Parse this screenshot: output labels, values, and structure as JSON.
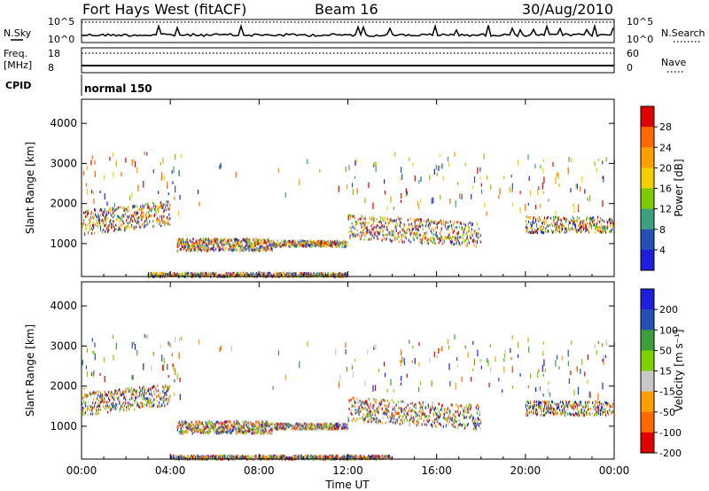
{
  "header": {
    "site": "Fort Hays West (fitACF)",
    "beam": "Beam 16",
    "date": "30/Aug/2010"
  },
  "top_panels": {
    "nsky_label": "N.Sky",
    "nsearch_label": "N.Search",
    "count_scale": [
      "10^5",
      "10^0"
    ],
    "freq_label": "Freq.",
    "freq_unit": "[MHz]",
    "freq_ticks": [
      "18",
      "8"
    ],
    "nave_label": "Nave",
    "nave_ticks": [
      "60",
      "0"
    ],
    "cpid_label": "CPID",
    "cpid_value": "normal 150"
  },
  "chart_data": [
    {
      "type": "heatmap",
      "name": "power",
      "ylabel": "Slant Range [km]",
      "yticks": [
        1000,
        2000,
        3000,
        4000
      ],
      "ylim": [
        180,
        4600
      ],
      "xlim_hours": [
        0,
        24
      ],
      "colorbar": {
        "label": "Power [dB]",
        "ticks": [
          "28",
          "24",
          "20",
          "16",
          "12",
          "8",
          "4"
        ],
        "colors": [
          "#e00000",
          "#ff6a00",
          "#ffa000",
          "#f2d000",
          "#7fc900",
          "#3c9f7f",
          "#2450b4",
          "#1e1edc"
        ]
      },
      "bands": [
        {
          "t0": 0.0,
          "t1": 4.0,
          "r0": 1250,
          "r1": 1850,
          "slope": 250,
          "density": 0.75
        },
        {
          "t0": 4.3,
          "t1": 8.6,
          "r0": 850,
          "r1": 1150,
          "slope": 0,
          "density": 0.9
        },
        {
          "t0": 8.6,
          "t1": 12.0,
          "r0": 950,
          "r1": 1100,
          "slope": 0,
          "density": 0.6
        },
        {
          "t0": 12.0,
          "t1": 18.0,
          "r0": 1150,
          "r1": 1750,
          "slope": -200,
          "density": 0.7
        },
        {
          "t0": 20.0,
          "t1": 24.0,
          "r0": 1300,
          "r1": 1700,
          "slope": 0,
          "density": 0.65
        },
        {
          "t0": 3.0,
          "t1": 12.0,
          "r0": 200,
          "r1": 300,
          "slope": 0,
          "density": 0.5
        }
      ]
    },
    {
      "type": "heatmap",
      "name": "velocity",
      "ylabel": "Slant Range [km]",
      "yticks": [
        1000,
        2000,
        3000,
        4000
      ],
      "ylim": [
        180,
        4600
      ],
      "xlim_hours": [
        0,
        24
      ],
      "xticks": [
        "00:00",
        "04:00",
        "08:00",
        "12:00",
        "16:00",
        "20:00",
        "00:00"
      ],
      "xlabel": "Time UT",
      "colorbar": {
        "label": "Velocity [m s⁻¹]",
        "ticks": [
          "200",
          "100",
          "50",
          "15",
          "-15",
          "-50",
          "-100",
          "-200"
        ],
        "colors": [
          "#1e1edc",
          "#2450b4",
          "#3c9f3c",
          "#7fd000",
          "#c8c8c8",
          "#ffa000",
          "#ff6a00",
          "#e00000"
        ]
      },
      "bands": [
        {
          "t0": 0.0,
          "t1": 4.0,
          "r0": 1300,
          "r1": 1850,
          "slope": 250,
          "density": 0.75
        },
        {
          "t0": 4.3,
          "t1": 8.6,
          "r0": 850,
          "r1": 1150,
          "slope": 0,
          "density": 0.9
        },
        {
          "t0": 8.6,
          "t1": 12.0,
          "r0": 950,
          "r1": 1100,
          "slope": 0,
          "density": 0.6
        },
        {
          "t0": 12.0,
          "t1": 18.0,
          "r0": 1150,
          "r1": 1750,
          "slope": -200,
          "density": 0.7
        },
        {
          "t0": 20.0,
          "t1": 24.0,
          "r0": 1300,
          "r1": 1650,
          "slope": 0,
          "density": 0.65
        },
        {
          "t0": 4.0,
          "t1": 14.0,
          "r0": 200,
          "r1": 300,
          "slope": 0,
          "density": 0.5
        }
      ]
    }
  ]
}
